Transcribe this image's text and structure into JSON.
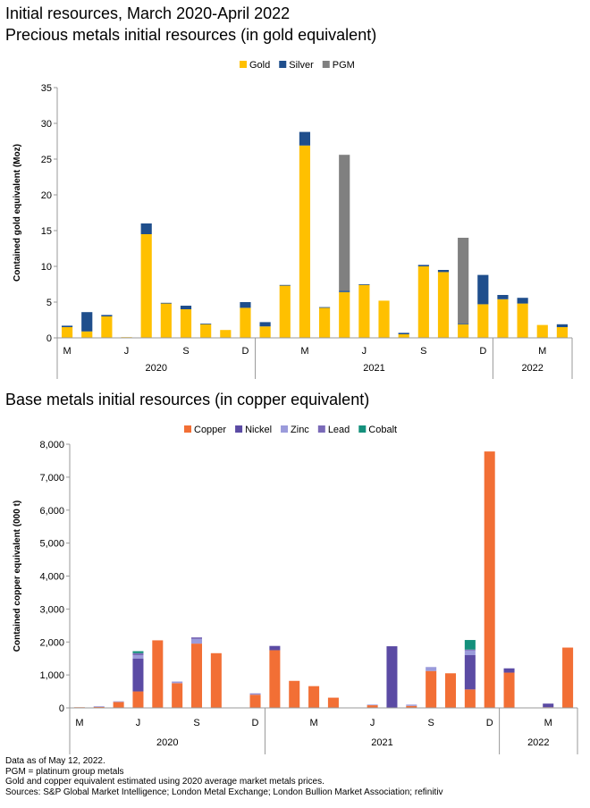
{
  "page": {
    "title_line1": "Initial resources, March 2020-April 2022",
    "title_line2": "Precious metals initial resources (in gold equivalent)",
    "title_base": "Base metals initial resources (in copper equivalent)"
  },
  "colors": {
    "gold": "#FFC000",
    "silver": "#1F4E8C",
    "pgm": "#808080",
    "copper": "#F26F35",
    "nickel": "#5B4BA4",
    "zinc": "#9B9BDB",
    "lead": "#7A6AB8",
    "cobalt": "#14907C",
    "axis": "#999999"
  },
  "chart_data": [
    {
      "type": "bar",
      "stacked": true,
      "title": "Precious metals initial resources (in gold equivalent)",
      "ylabel": "Contained gold equivalent (Moz)",
      "xlabel": "",
      "ylim": [
        0,
        35
      ],
      "yticks": [
        "0",
        "5",
        "10",
        "15",
        "20",
        "25",
        "30",
        "35"
      ],
      "legend_position": "top-center",
      "categories": [
        "Mar-2020",
        "Apr-2020",
        "May-2020",
        "Jun-2020",
        "Jul-2020",
        "Aug-2020",
        "Sep-2020",
        "Oct-2020",
        "Nov-2020",
        "Dec-2020",
        "Jan-2021",
        "Feb-2021",
        "Mar-2021",
        "Apr-2021",
        "May-2021",
        "Jun-2021",
        "Jul-2021",
        "Aug-2021",
        "Sep-2021",
        "Oct-2021",
        "Nov-2021",
        "Dec-2021",
        "Jan-2022",
        "Feb-2022",
        "Mar-2022",
        "Apr-2022"
      ],
      "month_labels": [
        {
          "index": 0,
          "label": "M"
        },
        {
          "index": 3,
          "label": "J"
        },
        {
          "index": 6,
          "label": "S"
        },
        {
          "index": 9,
          "label": "D"
        },
        {
          "index": 12,
          "label": "M"
        },
        {
          "index": 15,
          "label": "J"
        },
        {
          "index": 18,
          "label": "S"
        },
        {
          "index": 21,
          "label": "D"
        },
        {
          "index": 24,
          "label": "M"
        }
      ],
      "year_groups": [
        {
          "label": "2020",
          "start": 0,
          "end": 9
        },
        {
          "label": "2021",
          "start": 10,
          "end": 21
        },
        {
          "label": "2022",
          "start": 22,
          "end": 25
        }
      ],
      "series": [
        {
          "name": "Gold",
          "color": "#FFC000",
          "values": [
            1.5,
            0.9,
            3.0,
            0.1,
            14.5,
            4.8,
            4.0,
            1.9,
            1.1,
            4.2,
            1.6,
            7.3,
            26.9,
            4.2,
            6.4,
            7.4,
            5.2,
            0.5,
            10.0,
            9.2,
            1.9,
            4.7,
            5.4,
            4.8,
            1.8,
            1.5
          ]
        },
        {
          "name": "Silver",
          "color": "#1F4E8C",
          "values": [
            0.2,
            2.7,
            0.2,
            0.0,
            1.5,
            0.1,
            0.5,
            0.1,
            0.0,
            0.8,
            0.6,
            0.1,
            1.9,
            0.1,
            0.2,
            0.1,
            0.0,
            0.2,
            0.2,
            0.3,
            0.1,
            4.1,
            0.6,
            0.8,
            0.0,
            0.4
          ]
        },
        {
          "name": "PGM",
          "color": "#808080",
          "values": [
            0,
            0,
            0,
            0,
            0,
            0,
            0,
            0,
            0,
            0,
            0,
            0,
            0,
            0,
            19.0,
            0,
            0,
            0,
            0,
            0,
            12.0,
            0,
            0,
            0,
            0,
            0
          ]
        }
      ]
    },
    {
      "type": "bar",
      "stacked": true,
      "title": "Base metals initial resources (in copper equivalent)",
      "ylabel": "Contained copper equivalent (000 t)",
      "xlabel": "",
      "ylim": [
        0,
        8000
      ],
      "yticks": [
        "0",
        "1,000",
        "2,000",
        "3,000",
        "4,000",
        "5,000",
        "6,000",
        "7,000",
        "8,000"
      ],
      "legend_position": "top-center",
      "categories": [
        "Mar-2020",
        "Apr-2020",
        "May-2020",
        "Jun-2020",
        "Jul-2020",
        "Aug-2020",
        "Sep-2020",
        "Oct-2020",
        "Nov-2020",
        "Dec-2020",
        "Jan-2021",
        "Feb-2021",
        "Mar-2021",
        "Apr-2021",
        "May-2021",
        "Jun-2021",
        "Jul-2021",
        "Aug-2021",
        "Sep-2021",
        "Oct-2021",
        "Nov-2021",
        "Dec-2021",
        "Jan-2022",
        "Feb-2022",
        "Mar-2022",
        "Apr-2022"
      ],
      "month_labels": [
        {
          "index": 0,
          "label": "M"
        },
        {
          "index": 3,
          "label": "J"
        },
        {
          "index": 6,
          "label": "S"
        },
        {
          "index": 9,
          "label": "D"
        },
        {
          "index": 12,
          "label": "M"
        },
        {
          "index": 15,
          "label": "J"
        },
        {
          "index": 18,
          "label": "S"
        },
        {
          "index": 21,
          "label": "D"
        },
        {
          "index": 24,
          "label": "M"
        }
      ],
      "year_groups": [
        {
          "label": "2020",
          "start": 0,
          "end": 9
        },
        {
          "label": "2021",
          "start": 10,
          "end": 21
        },
        {
          "label": "2022",
          "start": 22,
          "end": 25
        }
      ],
      "series": [
        {
          "name": "Copper",
          "color": "#F26F35",
          "values": [
            20,
            30,
            180,
            500,
            2050,
            750,
            1950,
            1660,
            0,
            400,
            1750,
            820,
            660,
            310,
            0,
            80,
            0,
            60,
            1120,
            1050,
            560,
            7780,
            1070,
            10,
            20,
            1830
          ]
        },
        {
          "name": "Nickel",
          "color": "#5B4BA4",
          "values": [
            0,
            0,
            0,
            1000,
            0,
            0,
            0,
            0,
            0,
            0,
            130,
            0,
            0,
            0,
            0,
            0,
            1870,
            0,
            0,
            0,
            1040,
            0,
            130,
            0,
            110,
            0
          ]
        },
        {
          "name": "Zinc",
          "color": "#9B9BDB",
          "values": [
            0,
            20,
            20,
            100,
            0,
            50,
            140,
            0,
            0,
            30,
            0,
            0,
            0,
            0,
            0,
            20,
            0,
            40,
            120,
            0,
            140,
            0,
            0,
            0,
            0,
            0
          ]
        },
        {
          "name": "Lead",
          "color": "#7A6AB8",
          "values": [
            0,
            0,
            0,
            60,
            0,
            0,
            50,
            0,
            0,
            10,
            0,
            0,
            0,
            0,
            0,
            0,
            0,
            0,
            0,
            0,
            30,
            0,
            0,
            0,
            0,
            0
          ]
        },
        {
          "name": "Cobalt",
          "color": "#14907C",
          "values": [
            0,
            0,
            0,
            60,
            0,
            0,
            0,
            0,
            0,
            0,
            0,
            0,
            0,
            0,
            0,
            0,
            0,
            0,
            0,
            0,
            290,
            0,
            0,
            0,
            0,
            0
          ]
        }
      ]
    }
  ],
  "notes": [
    "Data as of May 12, 2022.",
    "PGM = platinum group metals",
    "Gold and copper equivalent estimated using 2020 average market metals prices.",
    "Sources: S&P Global Market Intelligence; London Metal Exchange; London Bullion Market Association; refinitiv"
  ]
}
